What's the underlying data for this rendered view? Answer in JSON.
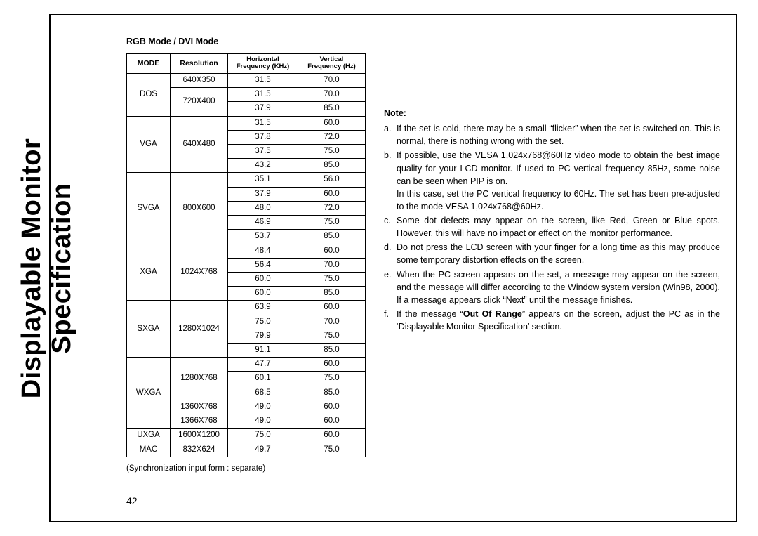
{
  "vertical_title_line1": "Displayable Monitor",
  "vertical_title_line2": "Specification",
  "table_title": "RGB Mode / DVI Mode",
  "headers": {
    "mode": "MODE",
    "resolution": "Resolution",
    "hfreq_l1": "Horizontal",
    "hfreq_l2": "Frequency (KHz)",
    "vfreq_l1": "Vertical",
    "vfreq_l2": "Frequency (Hz)"
  },
  "groups": [
    {
      "mode": "DOS",
      "blocks": [
        {
          "resolution": "640X350",
          "rows": [
            {
              "hf": "31.5",
              "vf": "70.0"
            }
          ]
        },
        {
          "resolution": "720X400",
          "rows": [
            {
              "hf": "31.5",
              "vf": "70.0"
            },
            {
              "hf": "37.9",
              "vf": "85.0"
            }
          ]
        }
      ]
    },
    {
      "mode": "VGA",
      "blocks": [
        {
          "resolution": "640X480",
          "rows": [
            {
              "hf": "31.5",
              "vf": "60.0"
            },
            {
              "hf": "37.8",
              "vf": "72.0"
            },
            {
              "hf": "37.5",
              "vf": "75.0"
            },
            {
              "hf": "43.2",
              "vf": "85.0"
            }
          ]
        }
      ]
    },
    {
      "mode": "SVGA",
      "blocks": [
        {
          "resolution": "800X600",
          "rows": [
            {
              "hf": "35.1",
              "vf": "56.0"
            },
            {
              "hf": "37.9",
              "vf": "60.0"
            },
            {
              "hf": "48.0",
              "vf": "72.0"
            },
            {
              "hf": "46.9",
              "vf": "75.0"
            },
            {
              "hf": "53.7",
              "vf": "85.0"
            }
          ]
        }
      ]
    },
    {
      "mode": "XGA",
      "blocks": [
        {
          "resolution": "1024X768",
          "rows": [
            {
              "hf": "48.4",
              "vf": "60.0"
            },
            {
              "hf": "56.4",
              "vf": "70.0"
            },
            {
              "hf": "60.0",
              "vf": "75.0"
            },
            {
              "hf": "60.0",
              "vf": "85.0"
            }
          ]
        }
      ]
    },
    {
      "mode": "SXGA",
      "blocks": [
        {
          "resolution": "1280X1024",
          "rows": [
            {
              "hf": "63.9",
              "vf": "60.0"
            },
            {
              "hf": "75.0",
              "vf": "70.0"
            },
            {
              "hf": "79.9",
              "vf": "75.0"
            },
            {
              "hf": "91.1",
              "vf": "85.0"
            }
          ]
        }
      ]
    },
    {
      "mode": "WXGA",
      "blocks": [
        {
          "resolution": "1280X768",
          "rows": [
            {
              "hf": "47.7",
              "vf": "60.0"
            },
            {
              "hf": "60.1",
              "vf": "75.0"
            },
            {
              "hf": "68.5",
              "vf": "85.0"
            }
          ]
        },
        {
          "resolution": "1360X768",
          "rows": [
            {
              "hf": "49.0",
              "vf": "60.0"
            }
          ]
        },
        {
          "resolution": "1366X768",
          "rows": [
            {
              "hf": "49.0",
              "vf": "60.0"
            }
          ]
        }
      ]
    },
    {
      "mode": "UXGA",
      "blocks": [
        {
          "resolution": "1600X1200",
          "rows": [
            {
              "hf": "75.0",
              "vf": "60.0"
            }
          ]
        }
      ]
    },
    {
      "mode": "MAC",
      "blocks": [
        {
          "resolution": "832X624",
          "rows": [
            {
              "hf": "49.7",
              "vf": "75.0"
            }
          ]
        }
      ]
    }
  ],
  "sync_note": "(Synchronization input form : separate)",
  "notes_title": "Note:",
  "notes": [
    {
      "label": "a.",
      "text": "If the set is cold, there may be a small “flicker” when the set is switched on. This is normal, there is nothing wrong with the set."
    },
    {
      "label": "b.",
      "text": "If possible, use the VESA 1,024x768@60Hz video mode to obtain the best image quality for your LCD monitor. If used to PC vertical frequency 85Hz, some noise can be seen when PIP is on.",
      "text2": "In this case, set the PC vertical frequency to 60Hz. The set has been pre-adjusted to the mode VESA 1,024x768@60Hz."
    },
    {
      "label": "c.",
      "text": "Some dot defects may appear on the screen, like Red, Green or Blue spots. However, this will have no impact or effect on the monitor performance."
    },
    {
      "label": "d.",
      "text": "Do not press the LCD screen with your finger for a long time as this may produce some temporary distortion effects on the screen."
    },
    {
      "label": "e.",
      "text": "When the PC screen appears on the set, a message may appear on the screen, and the message will differ according to the Window system version (Win98, 2000). If a message appears click “Next” until the message finishes."
    },
    {
      "label": "f.",
      "pre": "If the message “",
      "bold": "Out Of Range",
      "post": "” appears on the screen, adjust the PC as in the ‘Displayable Monitor Specification’ section."
    }
  ],
  "page_number": "42"
}
